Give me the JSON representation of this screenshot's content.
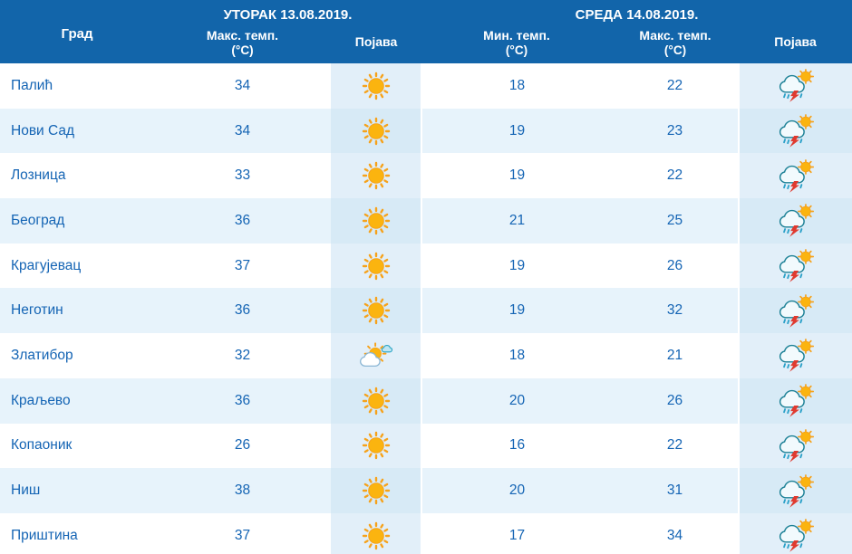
{
  "colors": {
    "header_bg": "#1265aa",
    "header_text": "#ffffff",
    "body_text": "#1464b4",
    "row_alt_bg": "#e7f3fb",
    "icon_cell_bg": "#e2eff9",
    "sun_color": "#f6a21b",
    "lightning_color": "#e03a2f"
  },
  "table": {
    "days": [
      {
        "label": "УТОРАК  13.08.2019."
      },
      {
        "label": "СРЕДА  14.08.2019."
      }
    ],
    "columns": {
      "city": "Град",
      "max_temp": "Макс. темп.",
      "min_temp": "Мин. темп.",
      "unit": "(°C)",
      "phenomenon": "Појава"
    },
    "rows": [
      {
        "city": "Палић",
        "tue_max": "34",
        "tue_icon": "sunny-icon",
        "wed_min": "18",
        "wed_max": "22",
        "wed_icon": "thunderstorm-icon"
      },
      {
        "city": "Нови Сад",
        "tue_max": "34",
        "tue_icon": "sunny-icon",
        "wed_min": "19",
        "wed_max": "23",
        "wed_icon": "thunderstorm-icon"
      },
      {
        "city": "Лозница",
        "tue_max": "33",
        "tue_icon": "sunny-icon",
        "wed_min": "19",
        "wed_max": "22",
        "wed_icon": "thunderstorm-icon"
      },
      {
        "city": "Београд",
        "tue_max": "36",
        "tue_icon": "sunny-icon",
        "wed_min": "21",
        "wed_max": "25",
        "wed_icon": "thunderstorm-icon"
      },
      {
        "city": "Крагујевац",
        "tue_max": "37",
        "tue_icon": "sunny-icon",
        "wed_min": "19",
        "wed_max": "26",
        "wed_icon": "thunderstorm-icon"
      },
      {
        "city": "Неготин",
        "tue_max": "36",
        "tue_icon": "sunny-icon",
        "wed_min": "19",
        "wed_max": "32",
        "wed_icon": "thunderstorm-icon"
      },
      {
        "city": "Златибор",
        "tue_max": "32",
        "tue_icon": "partly-cloudy-icon",
        "wed_min": "18",
        "wed_max": "21",
        "wed_icon": "thunderstorm-icon"
      },
      {
        "city": "Краљево",
        "tue_max": "36",
        "tue_icon": "sunny-icon",
        "wed_min": "20",
        "wed_max": "26",
        "wed_icon": "thunderstorm-icon"
      },
      {
        "city": "Копаоник",
        "tue_max": "26",
        "tue_icon": "sunny-icon",
        "wed_min": "16",
        "wed_max": "22",
        "wed_icon": "thunderstorm-icon"
      },
      {
        "city": "Ниш",
        "tue_max": "38",
        "tue_icon": "sunny-icon",
        "wed_min": "20",
        "wed_max": "31",
        "wed_icon": "thunderstorm-icon"
      },
      {
        "city": "Приштина",
        "tue_max": "37",
        "tue_icon": "sunny-icon",
        "wed_min": "17",
        "wed_max": "34",
        "wed_icon": "thunderstorm-icon"
      }
    ]
  }
}
